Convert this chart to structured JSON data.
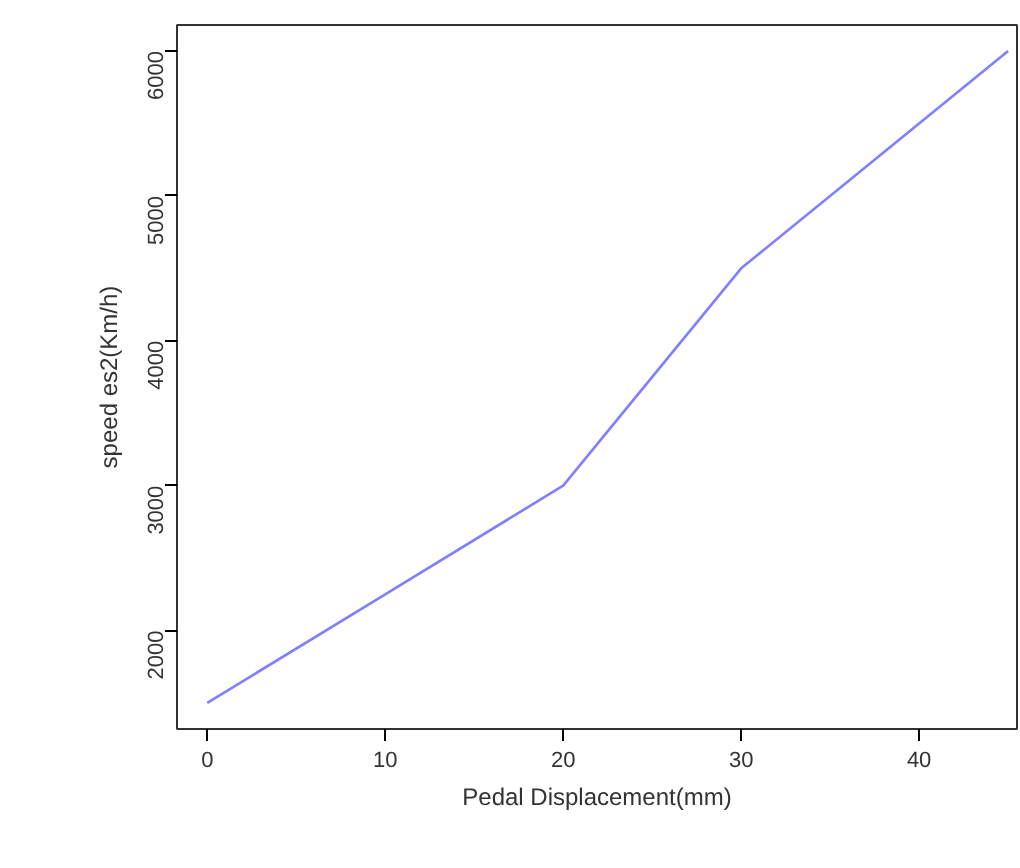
{
  "chart_data": {
    "type": "line",
    "xlabel": "Pedal Displacement(mm)",
    "ylabel": "speed es2(Km/h)",
    "x": [
      0,
      10,
      20,
      30,
      40,
      45
    ],
    "series": [
      {
        "color": "#7f7fff",
        "values": [
          1500,
          2250,
          3000,
          4500,
          5500,
          6000
        ]
      }
    ],
    "xlim": [
      -1.7,
      45.5
    ],
    "ylim": [
      1320,
      6180
    ],
    "xticks": [
      0,
      10,
      20,
      30,
      40
    ],
    "yticks": [
      2000,
      3000,
      4000,
      5000,
      6000
    ],
    "grid": false,
    "marker": "none",
    "line_style": "solid"
  }
}
